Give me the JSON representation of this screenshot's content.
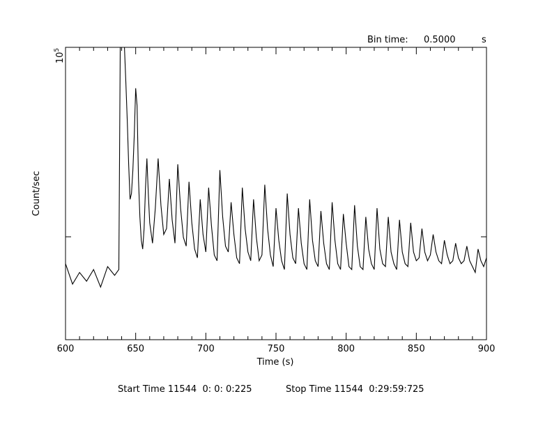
{
  "chart_data": {
    "type": "line",
    "title": "",
    "xlabel": "Time (s)",
    "ylabel": "Count/sec",
    "xlim": [
      600,
      900
    ],
    "ylim": [
      0,
      100000
    ],
    "y_top_label_base": "10",
    "y_top_label_exp": "5",
    "x_ticks": [
      600,
      650,
      700,
      750,
      800,
      850,
      900
    ],
    "x_tick_labels": [
      "600",
      "650",
      "700",
      "750",
      "800",
      "850",
      "900"
    ],
    "bin_time_label": "Bin time:",
    "bin_time_value": "0.5000",
    "bin_time_unit": "s",
    "start_label": "Start Time 11544  0: 0: 0:225",
    "stop_label": "Stop Time 11544  0:29:59:725",
    "series": [
      {
        "x": [
          600,
          605,
          610,
          615,
          620,
          625,
          630,
          635,
          638,
          639,
          640,
          641,
          642,
          643,
          644,
          645,
          646,
          647,
          648,
          649,
          650,
          651,
          652,
          653,
          654,
          655,
          656,
          657,
          658,
          659,
          660,
          662,
          664,
          666,
          668,
          670,
          672,
          674,
          676,
          678,
          680,
          682,
          684,
          686,
          688,
          690,
          692,
          694,
          696,
          698,
          700,
          702,
          704,
          706,
          708,
          710,
          712,
          714,
          716,
          718,
          720,
          722,
          724,
          726,
          728,
          730,
          732,
          734,
          736,
          738,
          740,
          742,
          744,
          746,
          748,
          750,
          752,
          754,
          756,
          758,
          760,
          762,
          764,
          766,
          768,
          770,
          772,
          774,
          776,
          778,
          780,
          782,
          784,
          786,
          788,
          790,
          792,
          794,
          796,
          798,
          800,
          802,
          804,
          806,
          808,
          810,
          812,
          814,
          816,
          818,
          820,
          822,
          824,
          826,
          828,
          830,
          832,
          834,
          836,
          838,
          840,
          842,
          844,
          846,
          848,
          850,
          852,
          854,
          856,
          858,
          860,
          862,
          864,
          866,
          868,
          870,
          872,
          874,
          876,
          878,
          880,
          882,
          884,
          886,
          888,
          890,
          892,
          894,
          896,
          898,
          900
        ],
        "values": [
          26000,
          19000,
          23000,
          20000,
          24000,
          18000,
          25000,
          22000,
          24000,
          100000,
          100000,
          100000,
          100000,
          88000,
          75000,
          60000,
          48000,
          50000,
          58000,
          70000,
          86000,
          80000,
          55000,
          42000,
          34000,
          31000,
          38000,
          52000,
          62000,
          50000,
          40000,
          33000,
          45000,
          62000,
          46000,
          36000,
          38000,
          55000,
          41000,
          33000,
          60000,
          45000,
          35000,
          32000,
          54000,
          40000,
          31000,
          28000,
          48000,
          36000,
          30000,
          52000,
          39000,
          29000,
          27000,
          58000,
          42000,
          32000,
          30000,
          47000,
          36000,
          28000,
          26000,
          52000,
          38000,
          30000,
          27000,
          48000,
          35000,
          27000,
          29000,
          53000,
          38000,
          29000,
          25000,
          45000,
          34000,
          27000,
          24000,
          50000,
          36000,
          28000,
          26000,
          45000,
          33000,
          26000,
          24000,
          48000,
          34000,
          27000,
          25000,
          44000,
          33000,
          26000,
          24000,
          47000,
          34000,
          26000,
          24000,
          43000,
          33000,
          25000,
          24000,
          46000,
          32000,
          25000,
          24000,
          42000,
          31000,
          26000,
          24000,
          45000,
          31000,
          26000,
          25000,
          42000,
          30000,
          26000,
          24000,
          41000,
          30000,
          26000,
          25000,
          40000,
          30000,
          27000,
          28000,
          38000,
          30000,
          27000,
          29000,
          36000,
          30000,
          27000,
          26000,
          34000,
          29000,
          26000,
          27000,
          33000,
          28000,
          26000,
          27000,
          32000,
          27000,
          25000,
          23000,
          31000,
          27000,
          25000,
          28000
        ]
      }
    ],
    "grid": false
  }
}
